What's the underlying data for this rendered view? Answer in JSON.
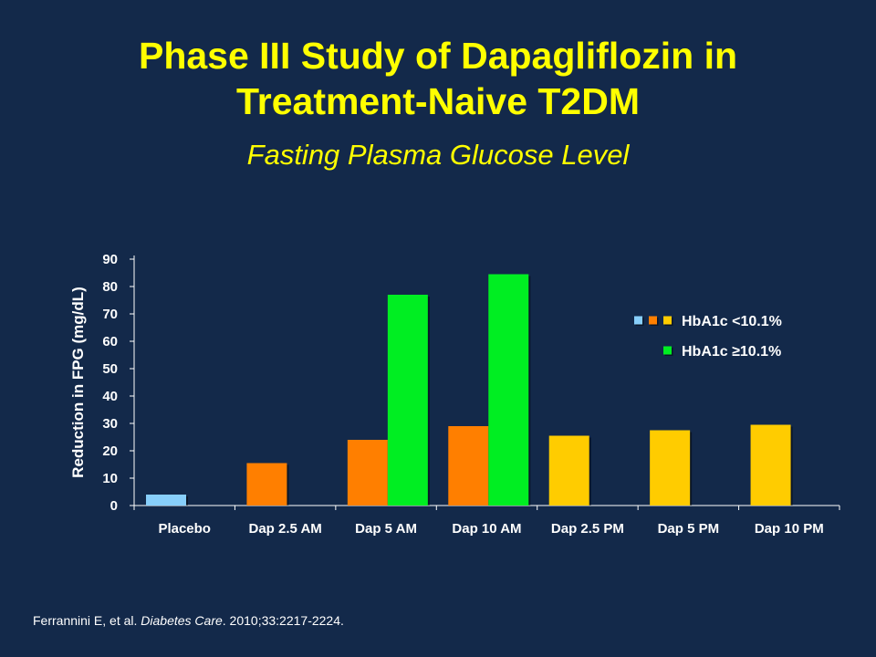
{
  "slide": {
    "title_line1": "Phase III Study of Dapagliflozin in",
    "title_line2": "Treatment-Naive T2DM",
    "subtitle": "Fasting Plasma Glucose Level",
    "citation": {
      "authors": "Ferrannini E, et al. ",
      "journal": "Diabetes Care",
      "details": ". 2010;33:2217-2224."
    }
  },
  "colors": {
    "background": "#13294a",
    "title": "#ffff00",
    "placebo": "#87cefa",
    "am_low": "#ff7f00",
    "pm_low": "#ffcc00",
    "high": "#00ee22"
  },
  "chart_data": {
    "type": "bar",
    "ylabel": "Reduction in FPG (mg/dL)",
    "xlabel": "",
    "ylim": [
      0,
      90
    ],
    "yticks": [
      0,
      10,
      20,
      30,
      40,
      50,
      60,
      70,
      80,
      90
    ],
    "grid": false,
    "categories": [
      "Placebo",
      "Dap 2.5 AM",
      "Dap 5 AM",
      "Dap 10 AM",
      "Dap 2.5 PM",
      "Dap 5 PM",
      "Dap 10 PM"
    ],
    "series": [
      {
        "name": "HbA1c <10.1%",
        "values": [
          4,
          15.5,
          24,
          29,
          25.5,
          27.5,
          29.5
        ],
        "colors": [
          "#87cefa",
          "#ff7f00",
          "#ff7f00",
          "#ff7f00",
          "#ffcc00",
          "#ffcc00",
          "#ffcc00"
        ]
      },
      {
        "name": "HbA1c ≥10.1%",
        "values": [
          null,
          null,
          77,
          84.5,
          null,
          null,
          null
        ],
        "colors": [
          "#00ee22",
          "#00ee22",
          "#00ee22",
          "#00ee22",
          "#00ee22",
          "#00ee22",
          "#00ee22"
        ]
      }
    ],
    "legend": {
      "placement": "right",
      "entries": [
        {
          "label": "HbA1c <10.1%",
          "swatches": [
            "#87cefa",
            "#ff7f00",
            "#ffcc00"
          ]
        },
        {
          "label": "HbA1c ≥10.1%",
          "swatches": [
            "#00ee22"
          ]
        }
      ]
    }
  }
}
